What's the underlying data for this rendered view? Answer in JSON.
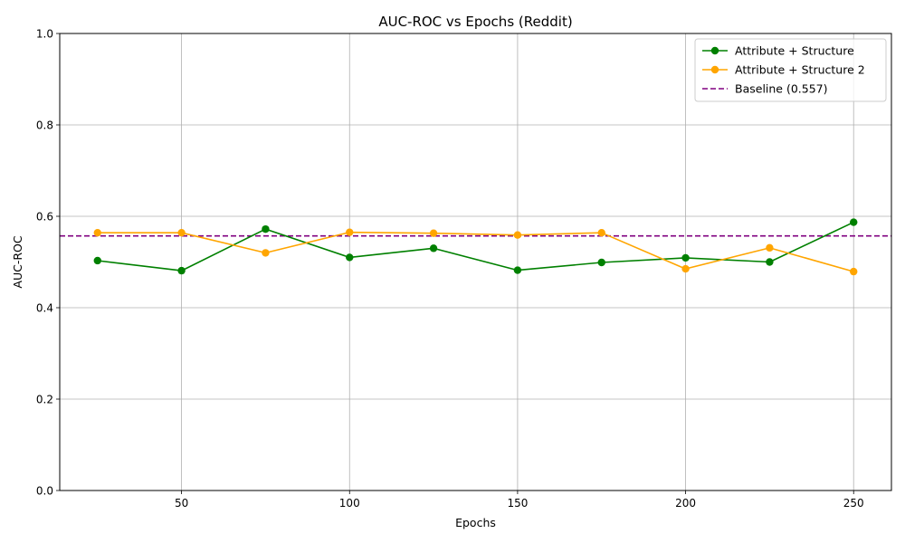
{
  "chart_data": {
    "type": "line",
    "title": "AUC-ROC vs Epochs (Reddit)",
    "xlabel": "Epochs",
    "ylabel": "AUC-ROC",
    "x": [
      25,
      50,
      75,
      100,
      125,
      150,
      175,
      200,
      225,
      250
    ],
    "xlim": [
      13.75,
      261.25
    ],
    "ylim": [
      0.0,
      1.0
    ],
    "xticks": [
      50,
      100,
      150,
      200,
      250
    ],
    "yticks": [
      0.0,
      0.2,
      0.4,
      0.6,
      0.8,
      1.0
    ],
    "xtick_labels": [
      "50",
      "100",
      "150",
      "200",
      "250"
    ],
    "ytick_labels": [
      "0.0",
      "0.2",
      "0.4",
      "0.6",
      "0.8",
      "1.0"
    ],
    "grid": true,
    "legend_position": "top-right",
    "series": [
      {
        "name": "Attribute + Structure",
        "color": "#008000",
        "marker": "circle",
        "values": [
          0.503,
          0.481,
          0.572,
          0.51,
          0.53,
          0.482,
          0.499,
          0.509,
          0.5,
          0.587
        ]
      },
      {
        "name": "Attribute + Structure 2",
        "color": "#ffa500",
        "marker": "circle",
        "values": [
          0.564,
          0.564,
          0.52,
          0.565,
          0.563,
          0.559,
          0.564,
          0.485,
          0.531,
          0.479
        ]
      }
    ],
    "reference_lines": [
      {
        "name": "Baseline (0.557)",
        "value": 0.557,
        "color": "#800080",
        "style": "dashed"
      }
    ]
  }
}
